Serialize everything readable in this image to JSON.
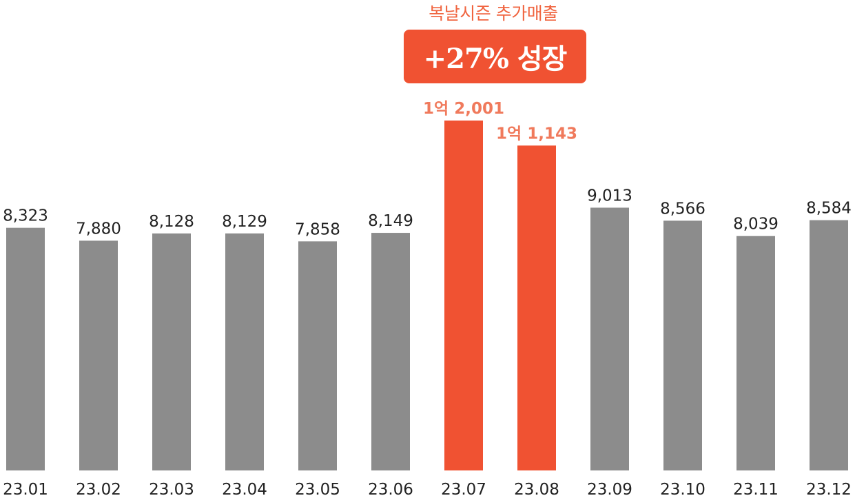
{
  "chart_data": {
    "type": "bar",
    "categories": [
      "23.01",
      "23.02",
      "23.03",
      "23.04",
      "23.05",
      "23.06",
      "23.07",
      "23.08",
      "23.09",
      "23.10",
      "23.11",
      "23.12"
    ],
    "values": [
      8323,
      7880,
      8128,
      8129,
      7858,
      8149,
      12001,
      11143,
      9013,
      8566,
      8039,
      8584
    ],
    "value_labels": [
      "8,323",
      "7,880",
      "8,128",
      "8,129",
      "7,858",
      "8,149",
      "1억 2,001",
      "1억 1,143",
      "9,013",
      "8,566",
      "8,039",
      "8,584"
    ],
    "highlighted": [
      false,
      false,
      false,
      false,
      false,
      false,
      true,
      true,
      false,
      false,
      false,
      false
    ],
    "title": "",
    "xlabel": "",
    "ylabel": "",
    "ylim": [
      0,
      12500
    ],
    "grid": false,
    "legend": "none",
    "annotation": {
      "subtitle": "복날시즌 추가매출",
      "badge": "+27% 성장"
    }
  },
  "colors": {
    "bar_default": "#8c8c8c",
    "bar_highlight": "#f05232",
    "label_default": "#222222",
    "label_highlight": "#f07a5c",
    "badge_background": "#f05232",
    "subtitle_text": "#f0643f"
  }
}
